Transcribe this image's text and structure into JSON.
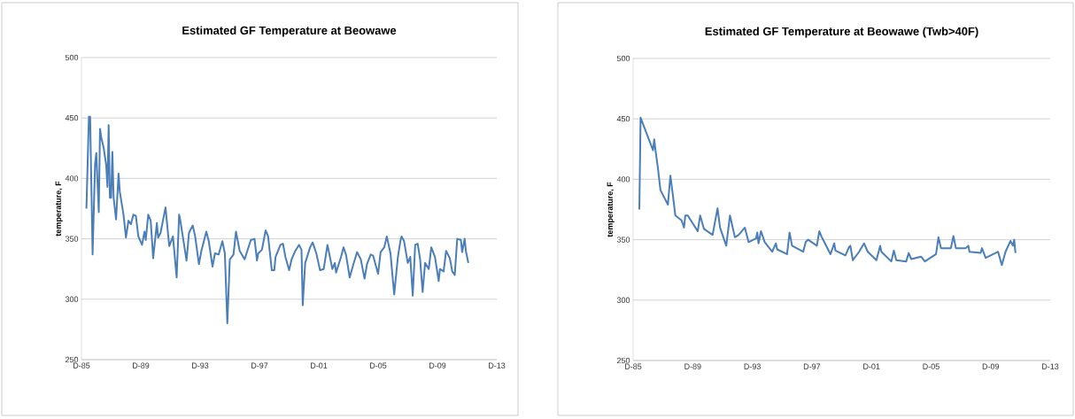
{
  "chart_data": [
    {
      "type": "line",
      "title": "Estimated GF Temperature at Beowawe",
      "ylabel": "temperature, F",
      "grid": "y",
      "marker": "none",
      "line_style": "solid",
      "xlim": [
        "1985-12",
        "2013-12"
      ],
      "ylim": [
        250,
        500
      ],
      "xticks": [
        {
          "value": "1985-12",
          "label": "D-85"
        },
        {
          "value": "1989-12",
          "label": "D-89"
        },
        {
          "value": "1993-12",
          "label": "D-93"
        },
        {
          "value": "1997-12",
          "label": "D-97"
        },
        {
          "value": "2001-12",
          "label": "D-01"
        },
        {
          "value": "2005-12",
          "label": "D-05"
        },
        {
          "value": "2009-12",
          "label": "D-09"
        },
        {
          "value": "2013-12",
          "label": "D-13"
        }
      ],
      "yticks": [
        250,
        300,
        350,
        400,
        450,
        500
      ],
      "x": [
        "1986-04",
        "1986-06",
        "1986-07",
        "1986-09",
        "1986-11",
        "1986-12",
        "1987-02",
        "1987-03",
        "1987-04",
        "1987-06",
        "1987-08",
        "1987-09",
        "1987-10",
        "1987-11",
        "1987-12",
        "1988-01",
        "1988-02",
        "1988-04",
        "1988-06",
        "1988-07",
        "1988-10",
        "1988-12",
        "1989-02",
        "1989-04",
        "1989-06",
        "1989-08",
        "1989-10",
        "1990-01",
        "1990-03",
        "1990-04",
        "1990-06",
        "1990-08",
        "1990-10",
        "1991-01",
        "1991-02",
        "1991-04",
        "1991-08",
        "1991-11",
        "1992-02",
        "1992-05",
        "1992-07",
        "1992-08",
        "1993-01",
        "1993-03",
        "1993-06",
        "1993-08",
        "1993-11",
        "1994-01",
        "1994-05",
        "1994-07",
        "1994-10",
        "1994-12",
        "1995-03",
        "1995-06",
        "1995-08",
        "1995-10",
        "1995-12",
        "1996-03",
        "1996-05",
        "1996-08",
        "1996-12",
        "1997-05",
        "1997-08",
        "1997-10",
        "1997-11",
        "1998-02",
        "1998-05",
        "1998-07",
        "1998-10",
        "1998-12",
        "1999-01",
        "1999-05",
        "1999-07",
        "1999-09",
        "1999-12",
        "2000-02",
        "2000-05",
        "2000-08",
        "2000-10",
        "2000-11",
        "2001-01",
        "2001-05",
        "2001-07",
        "2001-10",
        "2002-01",
        "2002-04",
        "2002-07",
        "2002-11",
        "2003-01",
        "2003-02",
        "2003-06",
        "2003-08",
        "2003-10",
        "2004-01",
        "2004-04",
        "2004-07",
        "2004-10",
        "2005-01",
        "2005-03",
        "2005-06",
        "2005-08",
        "2005-12",
        "2006-02",
        "2006-05",
        "2006-07",
        "2006-10",
        "2007-01",
        "2007-04",
        "2007-06",
        "2007-07",
        "2007-09",
        "2007-12",
        "2008-02",
        "2008-04",
        "2008-06",
        "2008-08",
        "2008-10",
        "2008-12",
        "2009-02",
        "2009-05",
        "2009-07",
        "2009-10",
        "2010-01",
        "2010-02",
        "2010-05",
        "2010-07",
        "2010-10",
        "2010-12",
        "2011-02",
        "2011-04",
        "2011-07",
        "2011-08",
        "2011-10",
        "2011-11",
        "2012-01"
      ],
      "series": [
        {
          "color": "#4a7ebb",
          "values": [
            375,
            451,
            451,
            337,
            412,
            421,
            372,
            441,
            434,
            425,
            411,
            393,
            444,
            384,
            384,
            422,
            384,
            366,
            404,
            389,
            370,
            351,
            365,
            362,
            370,
            369,
            352,
            345,
            356,
            349,
            370,
            365,
            334,
            363,
            351,
            355,
            376,
            344,
            352,
            318,
            370,
            365,
            332,
            355,
            361,
            352,
            329,
            340,
            356,
            348,
            327,
            338,
            337,
            348,
            338,
            280,
            333,
            337,
            356,
            340,
            333,
            349,
            350,
            332,
            338,
            341,
            357,
            352,
            324,
            324,
            335,
            345,
            346,
            335,
            324,
            333,
            340,
            345,
            341,
            295,
            330,
            343,
            347,
            338,
            324,
            325,
            345,
            325,
            330,
            322,
            335,
            343,
            337,
            318,
            329,
            339,
            333,
            317,
            329,
            337,
            336,
            321,
            339,
            343,
            352,
            338,
            304,
            335,
            348,
            352,
            348,
            330,
            335,
            303,
            345,
            346,
            333,
            306,
            330,
            325,
            343,
            335,
            315,
            325,
            323,
            340,
            334,
            323,
            320,
            350,
            349,
            339,
            350,
            340,
            330
          ]
        }
      ]
    },
    {
      "type": "line",
      "title": "Estimated GF Temperature at Beowawe (Twb>40F)",
      "ylabel": "temperature, F",
      "grid": "y",
      "marker": "none",
      "line_style": "solid",
      "xlim": [
        "1985-12",
        "2013-12"
      ],
      "ylim": [
        250,
        500
      ],
      "xticks": [
        {
          "value": "1985-12",
          "label": "D-85"
        },
        {
          "value": "1989-12",
          "label": "D-89"
        },
        {
          "value": "1993-12",
          "label": "D-93"
        },
        {
          "value": "1997-12",
          "label": "D-97"
        },
        {
          "value": "2001-12",
          "label": "D-01"
        },
        {
          "value": "2005-12",
          "label": "D-05"
        },
        {
          "value": "2009-12",
          "label": "D-09"
        },
        {
          "value": "2013-12",
          "label": "D-13"
        }
      ],
      "yticks": [
        250,
        300,
        350,
        400,
        450,
        500
      ],
      "x": [
        "1986-05",
        "1986-06",
        "1987-04",
        "1987-05",
        "1987-06",
        "1987-08",
        "1987-10",
        "1988-04",
        "1988-06",
        "1988-08",
        "1988-10",
        "1989-03",
        "1989-05",
        "1989-06",
        "1989-08",
        "1990-04",
        "1990-06",
        "1990-09",
        "1991-04",
        "1991-08",
        "1991-10",
        "1992-03",
        "1992-06",
        "1992-10",
        "1993-01",
        "1993-06",
        "1993-09",
        "1994-03",
        "1994-04",
        "1994-05",
        "1994-07",
        "1994-10",
        "1995-04",
        "1995-07",
        "1995-08",
        "1996-04",
        "1996-06",
        "1996-08",
        "1997-05",
        "1997-07",
        "1997-09",
        "1998-04",
        "1998-06",
        "1998-08",
        "1998-10",
        "1999-03",
        "1999-06",
        "1999-07",
        "2000-03",
        "2000-06",
        "2000-07",
        "2000-09",
        "2001-02",
        "2001-06",
        "2001-09",
        "2002-04",
        "2002-07",
        "2002-08",
        "2003-04",
        "2003-06",
        "2003-08",
        "2004-04",
        "2004-06",
        "2004-08",
        "2005-04",
        "2005-07",
        "2006-04",
        "2006-06",
        "2006-08",
        "2007-04",
        "2007-06",
        "2007-08",
        "2008-04",
        "2008-06",
        "2008-07",
        "2009-04",
        "2009-05",
        "2009-08",
        "2010-06",
        "2010-09",
        "2010-12",
        "2011-04",
        "2011-06",
        "2011-07",
        "2011-08"
      ],
      "series": [
        {
          "color": "#4a7ebb",
          "values": [
            375,
            451,
            424,
            433,
            424,
            409,
            391,
            379,
            403,
            387,
            370,
            366,
            360,
            370,
            370,
            357,
            370,
            359,
            354,
            376,
            360,
            345,
            370,
            352,
            354,
            360,
            348,
            351,
            356,
            347,
            357,
            348,
            340,
            347,
            342,
            338,
            356,
            345,
            340,
            348,
            350,
            345,
            357,
            352,
            348,
            338,
            347,
            341,
            337,
            344,
            345,
            333,
            340,
            347,
            340,
            333,
            345,
            340,
            332,
            341,
            333,
            332,
            339,
            334,
            336,
            332,
            338,
            352,
            343,
            343,
            353,
            343,
            343,
            345,
            340,
            339,
            343,
            335,
            340,
            329,
            340,
            349,
            345,
            350,
            339
          ]
        }
      ]
    }
  ]
}
